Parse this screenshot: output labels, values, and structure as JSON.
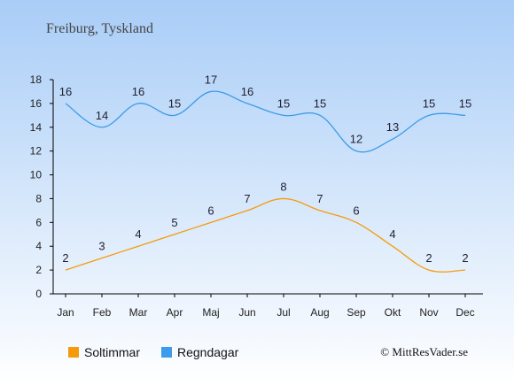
{
  "chart_data": {
    "type": "line",
    "title": "Freiburg, Tyskland",
    "categories": [
      "Jan",
      "Feb",
      "Mar",
      "Apr",
      "Maj",
      "Jun",
      "Jul",
      "Aug",
      "Sep",
      "Okt",
      "Nov",
      "Dec"
    ],
    "ylim": [
      0,
      18
    ],
    "yticks": [
      "0",
      "2",
      "4",
      "6",
      "8",
      "10",
      "12",
      "14",
      "16",
      "18"
    ],
    "grid": false,
    "series": [
      {
        "name": "Soltimmar",
        "color": "#f59b0b",
        "values": [
          2,
          3,
          4,
          5,
          6,
          7,
          8,
          7,
          6,
          4,
          2,
          2
        ]
      },
      {
        "name": "Regndagar",
        "color": "#3c9bea",
        "values": [
          16,
          14,
          16,
          15,
          17,
          16,
          15,
          15,
          12,
          13,
          15,
          15
        ]
      }
    ],
    "legend_position": "bottom-left"
  },
  "credit": "© MittResVader.se"
}
